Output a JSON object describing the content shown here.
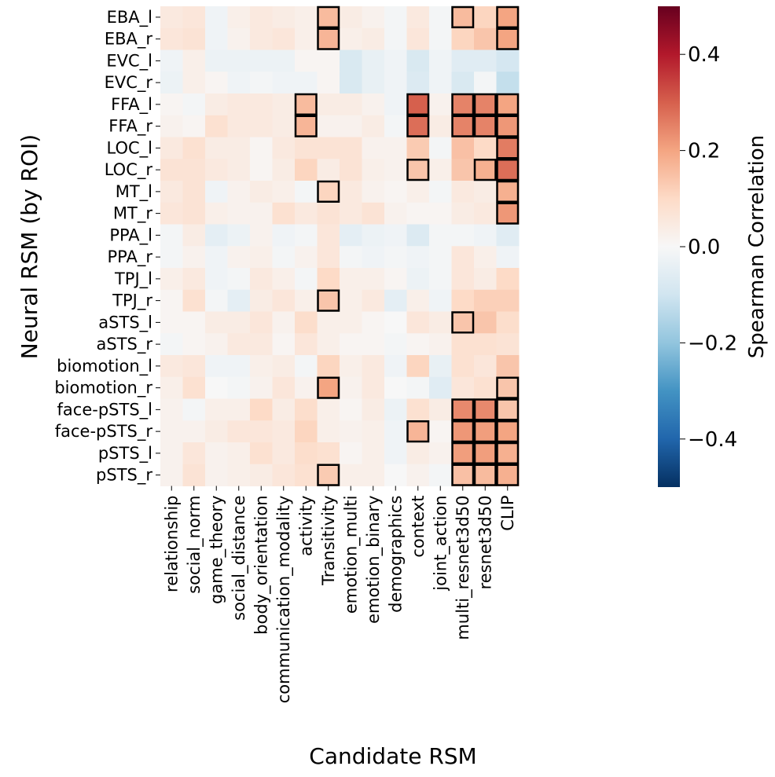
{
  "chart_data": {
    "type": "heatmap",
    "xlabel": "Candidate RSM",
    "ylabel": "Neural RSM (by ROI)",
    "colorbar": {
      "label": "Spearman Correlation",
      "range": [
        -0.5,
        0.5
      ],
      "ticks": [
        0.4,
        0.2,
        0.0,
        -0.2,
        -0.4
      ],
      "tick_labels": [
        "0.4",
        "0.2",
        "0.0",
        "−0.2",
        "−0.4"
      ],
      "colormap": "RdBu_r"
    },
    "columns": [
      "relationship",
      "social_norm",
      "game_theory",
      "social_distance",
      "body_orientation",
      "communication_modality",
      "activity",
      "Transitivity",
      "emotion_multi",
      "emotion_binary",
      "demographics",
      "context",
      "joint_action",
      "multi_resnet3d50",
      "resnet3d50",
      "CLIP"
    ],
    "rows": [
      "EBA_l",
      "EBA_r",
      "EVC_l",
      "EVC_r",
      "FFA_l",
      "FFA_r",
      "LOC_l",
      "LOC_r",
      "MT_l",
      "MT_r",
      "PPA_l",
      "PPA_r",
      "TPJ_l",
      "TPJ_r",
      "aSTS_l",
      "aSTS_r",
      "biomotion_l",
      "biomotion_r",
      "face-pSTS_l",
      "face-pSTS_r",
      "pSTS_l",
      "pSTS_r"
    ],
    "values": [
      [
        0.05,
        0.06,
        -0.02,
        0.03,
        0.05,
        0.04,
        0.03,
        0.16,
        0.04,
        0.02,
        -0.01,
        0.05,
        -0.01,
        0.16,
        0.11,
        0.2
      ],
      [
        0.06,
        0.07,
        -0.02,
        0.02,
        0.05,
        0.06,
        0.03,
        0.17,
        0.03,
        0.04,
        -0.01,
        0.06,
        -0.01,
        0.11,
        0.14,
        0.2
      ],
      [
        -0.02,
        0.03,
        -0.03,
        -0.03,
        -0.03,
        -0.03,
        0.01,
        0.01,
        -0.08,
        -0.04,
        -0.02,
        -0.08,
        -0.02,
        -0.06,
        -0.06,
        -0.09
      ],
      [
        -0.03,
        0.03,
        0.01,
        -0.02,
        -0.01,
        -0.02,
        -0.02,
        0.01,
        -0.08,
        -0.04,
        -0.02,
        -0.07,
        -0.02,
        -0.08,
        -0.01,
        -0.12
      ],
      [
        0.01,
        -0.01,
        0.04,
        0.05,
        0.05,
        0.04,
        0.16,
        0.04,
        0.04,
        0.02,
        -0.02,
        0.3,
        0.02,
        0.25,
        0.25,
        0.2
      ],
      [
        0.02,
        0.01,
        0.08,
        0.05,
        0.05,
        0.04,
        0.17,
        0.02,
        0.02,
        0.04,
        -0.01,
        0.28,
        0.04,
        0.25,
        0.25,
        0.22
      ],
      [
        0.05,
        0.08,
        0.04,
        0.04,
        0.01,
        0.05,
        0.07,
        0.07,
        0.07,
        0.02,
        0.02,
        0.13,
        -0.01,
        0.15,
        0.1,
        0.26
      ],
      [
        0.07,
        0.07,
        0.05,
        0.04,
        0.01,
        0.04,
        0.11,
        0.04,
        0.07,
        0.03,
        0.02,
        0.14,
        0.03,
        0.14,
        0.18,
        0.28
      ],
      [
        0.05,
        0.07,
        -0.02,
        0.02,
        0.04,
        0.03,
        -0.01,
        0.11,
        0.05,
        0.02,
        0.01,
        0.03,
        -0.01,
        0.05,
        0.04,
        0.18
      ],
      [
        0.06,
        0.07,
        0.03,
        0.02,
        0.02,
        0.08,
        0.05,
        0.07,
        0.05,
        0.07,
        0.02,
        0.01,
        0.01,
        0.04,
        0.05,
        0.22
      ],
      [
        -0.01,
        0.04,
        -0.05,
        -0.03,
        0.02,
        -0.02,
        -0.01,
        0.06,
        -0.05,
        -0.03,
        -0.02,
        -0.07,
        -0.01,
        -0.01,
        -0.02,
        -0.06
      ],
      [
        -0.01,
        0.02,
        -0.02,
        0.02,
        0.03,
        -0.01,
        0.02,
        0.06,
        -0.01,
        -0.02,
        -0.01,
        -0.02,
        -0.01,
        0.06,
        0.03,
        -0.02
      ],
      [
        0.03,
        0.05,
        -0.02,
        -0.01,
        0.05,
        0.03,
        -0.01,
        0.1,
        0.03,
        0.03,
        0.01,
        -0.03,
        -0.01,
        0.06,
        0.04,
        0.1
      ],
      [
        0.01,
        0.08,
        -0.01,
        -0.05,
        0.04,
        0.06,
        0.03,
        0.14,
        0.03,
        0.05,
        -0.05,
        0.03,
        -0.02,
        0.1,
        0.12,
        0.12
      ],
      [
        0.01,
        0.01,
        0.04,
        0.04,
        0.06,
        0.02,
        0.09,
        0.03,
        0.03,
        0.01,
        0.0,
        0.06,
        0.04,
        0.14,
        0.14,
        0.09
      ],
      [
        -0.01,
        0.01,
        0.02,
        0.05,
        0.05,
        0.01,
        0.06,
        0.03,
        0.01,
        0.01,
        -0.01,
        0.01,
        0.02,
        0.08,
        0.08,
        0.07
      ],
      [
        0.05,
        0.06,
        -0.02,
        -0.02,
        0.03,
        0.04,
        -0.01,
        0.11,
        0.03,
        0.05,
        -0.02,
        0.11,
        -0.04,
        0.08,
        0.06,
        0.14
      ],
      [
        0.03,
        0.08,
        0.0,
        -0.01,
        0.02,
        0.06,
        0.02,
        0.2,
        0.02,
        0.05,
        0.0,
        -0.01,
        -0.06,
        0.06,
        0.08,
        0.14
      ],
      [
        0.02,
        -0.01,
        0.03,
        0.03,
        0.1,
        0.04,
        0.09,
        0.03,
        0.01,
        0.04,
        -0.03,
        0.08,
        0.04,
        0.24,
        0.24,
        0.14
      ],
      [
        0.02,
        0.02,
        0.04,
        0.06,
        0.06,
        0.05,
        0.11,
        0.03,
        0.02,
        0.03,
        -0.02,
        0.17,
        0.01,
        0.22,
        0.21,
        0.2
      ],
      [
        0.02,
        0.06,
        0.02,
        0.03,
        0.08,
        0.05,
        0.09,
        0.08,
        0.01,
        0.03,
        -0.02,
        0.04,
        0.02,
        0.21,
        0.21,
        0.18
      ],
      [
        0.02,
        0.07,
        0.02,
        0.03,
        0.04,
        0.06,
        0.08,
        0.13,
        0.03,
        0.03,
        0.0,
        0.02,
        -0.01,
        0.15,
        0.16,
        0.18
      ]
    ],
    "highlighted_cells": [
      [
        0,
        7
      ],
      [
        0,
        13
      ],
      [
        0,
        15
      ],
      [
        1,
        7
      ],
      [
        1,
        15
      ],
      [
        4,
        6
      ],
      [
        4,
        11
      ],
      [
        4,
        13
      ],
      [
        4,
        14
      ],
      [
        4,
        15
      ],
      [
        5,
        6
      ],
      [
        5,
        11
      ],
      [
        5,
        13
      ],
      [
        5,
        14
      ],
      [
        5,
        15
      ],
      [
        6,
        15
      ],
      [
        7,
        11
      ],
      [
        7,
        14
      ],
      [
        7,
        15
      ],
      [
        8,
        7
      ],
      [
        8,
        15
      ],
      [
        9,
        15
      ],
      [
        13,
        7
      ],
      [
        14,
        13
      ],
      [
        17,
        7
      ],
      [
        17,
        15
      ],
      [
        18,
        13
      ],
      [
        18,
        14
      ],
      [
        18,
        15
      ],
      [
        19,
        11
      ],
      [
        19,
        13
      ],
      [
        19,
        14
      ],
      [
        19,
        15
      ],
      [
        20,
        13
      ],
      [
        20,
        14
      ],
      [
        20,
        15
      ],
      [
        21,
        7
      ],
      [
        21,
        13
      ],
      [
        21,
        14
      ],
      [
        21,
        15
      ]
    ],
    "legend_position": "right (colorbar)"
  }
}
